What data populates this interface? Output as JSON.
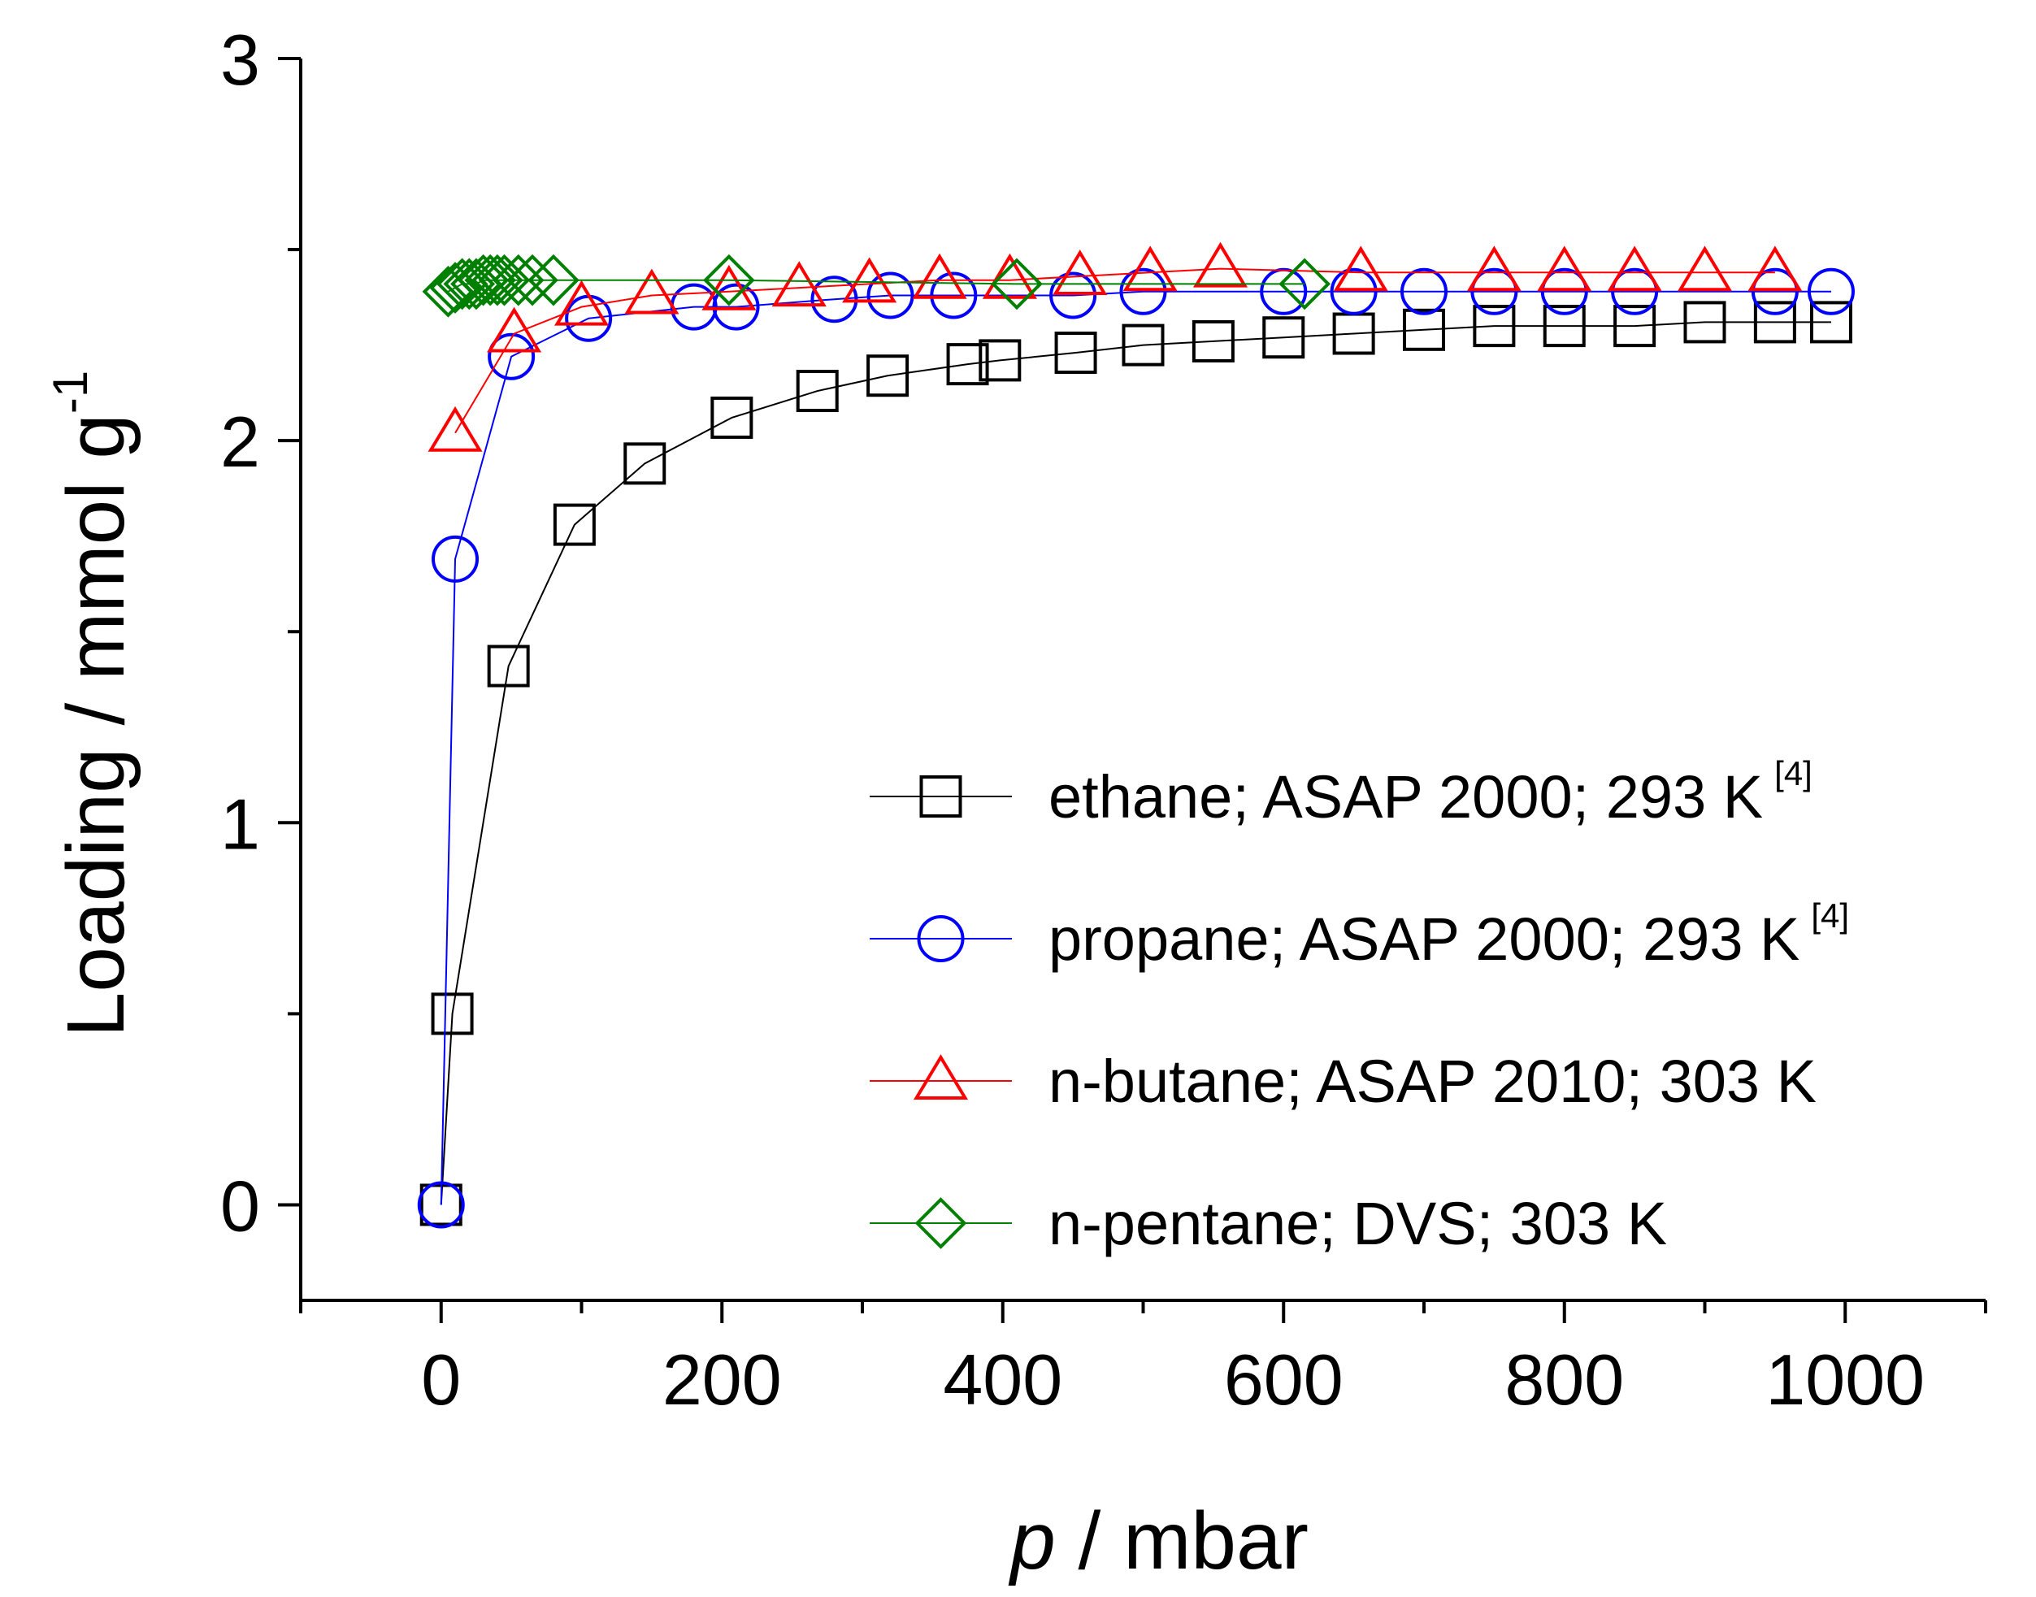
{
  "chart_data": {
    "type": "line",
    "title": "",
    "xlabel": {
      "symbol": "p",
      "unit": " / mbar"
    },
    "ylabel": {
      "text": "Loading / mmol g",
      "superscript": "-1"
    },
    "xlim": [
      -100,
      1100
    ],
    "ylim": [
      -0.25,
      3.0
    ],
    "x_ticks_major": [
      0,
      200,
      400,
      600,
      800,
      1000
    ],
    "x_tick_labels": [
      "0",
      "200",
      "400",
      "600",
      "800",
      "1000"
    ],
    "y_ticks_major": [
      0,
      1,
      2,
      3
    ],
    "y_tick_labels": [
      "0",
      "1",
      "2",
      "3"
    ],
    "legend_position": "center-right",
    "series": [
      {
        "name": "ethane; ASAP 2000; 293 K",
        "note": "[4]",
        "color": "#000000",
        "marker": "square",
        "x": [
          0,
          8,
          48,
          95,
          145,
          207,
          268,
          318,
          375,
          398,
          452,
          500,
          550,
          600,
          650,
          700,
          750,
          800,
          850,
          900,
          950,
          990
        ],
        "y": [
          0,
          0.5,
          1.41,
          1.78,
          1.94,
          2.06,
          2.13,
          2.17,
          2.2,
          2.21,
          2.23,
          2.25,
          2.26,
          2.27,
          2.28,
          2.29,
          2.3,
          2.3,
          2.3,
          2.31,
          2.31,
          2.31
        ]
      },
      {
        "name": "propane; ASAP 2000; 293 K",
        "note": "[4]",
        "color": "#0000ff",
        "marker": "circle",
        "x": [
          0,
          10,
          50,
          105,
          180,
          210,
          280,
          320,
          365,
          450,
          500,
          600,
          650,
          700,
          750,
          800,
          850,
          950,
          990
        ],
        "y": [
          0,
          1.69,
          2.22,
          2.32,
          2.35,
          2.35,
          2.37,
          2.38,
          2.38,
          2.38,
          2.39,
          2.39,
          2.39,
          2.39,
          2.39,
          2.39,
          2.39,
          2.39,
          2.39
        ]
      },
      {
        "name": "n-butane; ASAP 2010; 303 K",
        "note": "",
        "color": "#ff0000",
        "marker": "triangle",
        "x": [
          10,
          52,
          100,
          150,
          205,
          255,
          305,
          355,
          405,
          455,
          505,
          555,
          655,
          750,
          800,
          850,
          900,
          950
        ],
        "y": [
          2.02,
          2.28,
          2.35,
          2.38,
          2.39,
          2.4,
          2.41,
          2.42,
          2.42,
          2.43,
          2.44,
          2.45,
          2.44,
          2.44,
          2.44,
          2.44,
          2.44,
          2.44
        ]
      },
      {
        "name": "n-pentane; DVS; 303 K",
        "note": "",
        "color": "#008000",
        "marker": "diamond",
        "x": [
          5,
          10,
          15,
          20,
          25,
          30,
          35,
          40,
          45,
          55,
          65,
          80,
          205,
          410,
          615
        ],
        "y": [
          2.39,
          2.4,
          2.41,
          2.41,
          2.41,
          2.42,
          2.42,
          2.42,
          2.42,
          2.42,
          2.42,
          2.42,
          2.42,
          2.41,
          2.41
        ]
      }
    ]
  }
}
